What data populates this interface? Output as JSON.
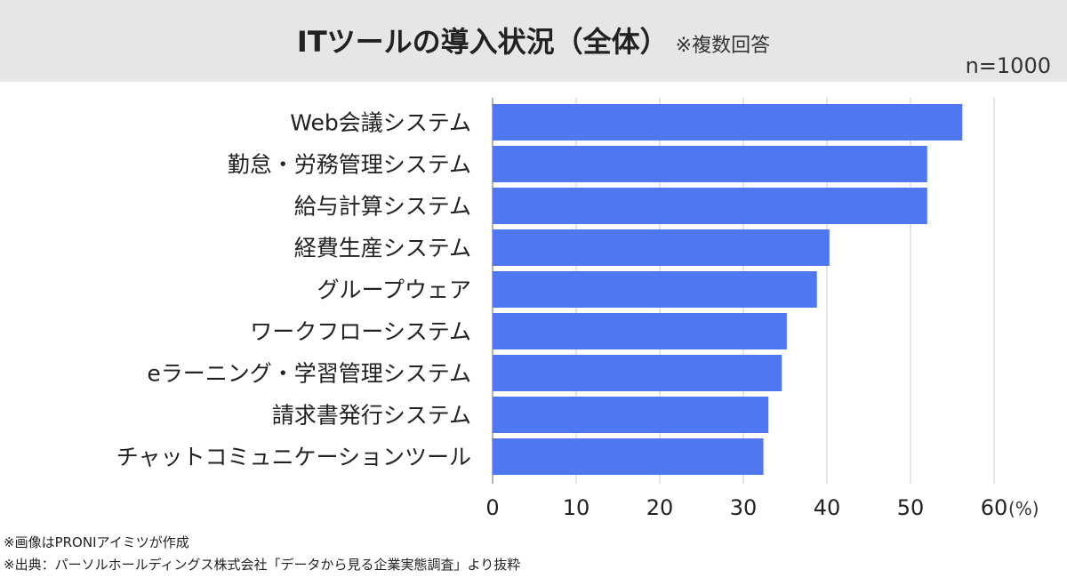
{
  "header": {
    "title": "ITツールの導入状況（全体）",
    "subtitle": "※複数回答",
    "sample_size": "n=1000"
  },
  "chart_data": {
    "type": "bar",
    "orientation": "horizontal",
    "categories": [
      "Web会議システム",
      "勤怠・労務管理システム",
      "給与計算システム",
      "経費生産システム",
      "グループウェア",
      "ワークフローシステム",
      "eラーニング・学習管理システム",
      "請求書発行システム",
      "チャットコミュニケーションツール"
    ],
    "values": [
      56.2,
      52.0,
      52.0,
      40.3,
      38.8,
      35.2,
      34.6,
      33.0,
      32.4
    ],
    "xlim": [
      0,
      60
    ],
    "ticks": [
      0,
      10,
      20,
      30,
      40,
      50,
      60
    ],
    "tick_labels": [
      "0",
      "10",
      "20",
      "30",
      "40",
      "50",
      "60"
    ],
    "unit_label": "(%)",
    "grid": true,
    "bar_color": "#5077f2",
    "grid_color": "#c8c8c8"
  },
  "footnotes": {
    "line1": "※画像はPRONIアイミツが作成",
    "line2": "※出典：パーソルホールディングス株式会社「データから見る企業実態調査」より抜粋"
  }
}
